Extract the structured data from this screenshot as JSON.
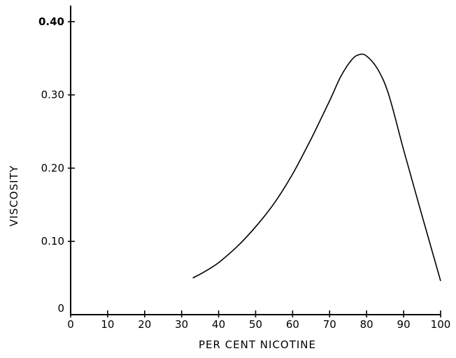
{
  "chart_data": {
    "type": "line",
    "title": "",
    "xlabel": "PER CENT NICOTINE",
    "ylabel": "VISCOSITY",
    "xlim": [
      0,
      100
    ],
    "ylim": [
      0,
      0.42
    ],
    "x_ticks": [
      "0",
      "10",
      "20",
      "30",
      "40",
      "50",
      "60",
      "70",
      "80",
      "90",
      "100"
    ],
    "y_ticks": [
      "0",
      "0.10",
      "0.20",
      "0.30",
      "0.40"
    ],
    "grid": false,
    "legend": "none",
    "series": [
      {
        "x": [
          33,
          36,
          40,
          45,
          50,
          55,
          60,
          65,
          70,
          73,
          76,
          78,
          80,
          83,
          86,
          90,
          95,
          100
        ],
        "y": [
          0.05,
          0.058,
          0.071,
          0.093,
          0.12,
          0.152,
          0.192,
          0.24,
          0.292,
          0.325,
          0.348,
          0.355,
          0.353,
          0.335,
          0.3,
          0.225,
          0.135,
          0.046
        ]
      }
    ]
  }
}
